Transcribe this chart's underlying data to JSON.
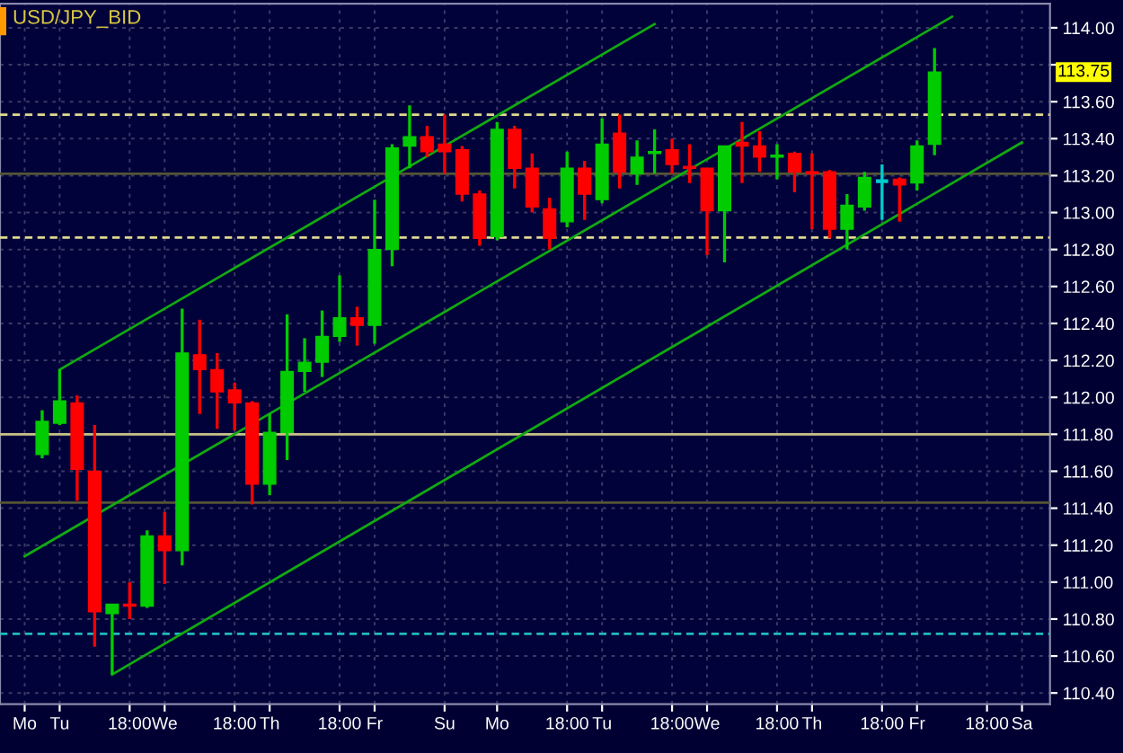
{
  "chart_data": {
    "type": "candlestick",
    "title": "USD/JPY_BID",
    "categories": [
      "Mo",
      null,
      "Tu",
      null,
      null,
      null,
      "18:00",
      null,
      "We",
      null,
      null,
      null,
      "18:00",
      null,
      "Th",
      null,
      null,
      null,
      "18:00",
      null,
      "Fr",
      null,
      null,
      null,
      "Su",
      null,
      null,
      "Mo",
      null,
      null,
      null,
      "18:00",
      null,
      "Tu",
      null,
      null,
      null,
      "18:00",
      null,
      "We",
      null,
      null,
      null,
      "18:00",
      null,
      "Th",
      null,
      null,
      null,
      "18:00",
      null,
      "Fr",
      null,
      null,
      null,
      "18:00",
      null,
      "Sa"
    ],
    "ohlc": [
      null,
      [
        111.69,
        111.93,
        111.67,
        111.87
      ],
      [
        111.86,
        112.15,
        111.85,
        111.98
      ],
      [
        111.97,
        112.01,
        111.44,
        111.61
      ],
      [
        111.6,
        111.85,
        110.65,
        110.84
      ],
      [
        110.83,
        110.88,
        110.5,
        110.88
      ],
      [
        110.88,
        111.0,
        110.8,
        110.87
      ],
      [
        110.87,
        111.28,
        110.86,
        111.25
      ],
      [
        111.25,
        111.38,
        110.99,
        111.17
      ],
      [
        111.17,
        112.48,
        111.09,
        112.24
      ],
      [
        112.23,
        112.42,
        111.91,
        112.15
      ],
      [
        112.15,
        112.24,
        111.83,
        112.03
      ],
      [
        112.04,
        112.08,
        111.82,
        111.97
      ],
      [
        111.97,
        111.98,
        111.42,
        111.53
      ],
      [
        111.53,
        111.91,
        111.47,
        111.81
      ],
      [
        111.81,
        112.45,
        111.66,
        112.14
      ],
      [
        112.14,
        112.32,
        112.03,
        112.19
      ],
      [
        112.19,
        112.47,
        112.11,
        112.33
      ],
      [
        112.33,
        112.66,
        112.3,
        112.43
      ],
      [
        112.43,
        112.49,
        112.28,
        112.39
      ],
      [
        112.39,
        113.07,
        112.29,
        112.8
      ],
      [
        112.8,
        113.37,
        112.71,
        113.35
      ],
      [
        113.36,
        113.58,
        113.24,
        113.41
      ],
      [
        113.41,
        113.47,
        113.3,
        113.33
      ],
      [
        113.37,
        113.53,
        113.21,
        113.33
      ],
      [
        113.34,
        113.36,
        113.06,
        113.1
      ],
      [
        113.1,
        113.12,
        112.82,
        112.86
      ],
      [
        112.87,
        113.49,
        112.85,
        113.45
      ],
      [
        113.45,
        113.47,
        113.13,
        113.24
      ],
      [
        113.24,
        113.32,
        113.0,
        113.03
      ],
      [
        113.02,
        113.08,
        112.8,
        112.86
      ],
      [
        112.95,
        113.33,
        112.92,
        113.24
      ],
      [
        113.24,
        113.28,
        112.96,
        113.1
      ],
      [
        113.07,
        113.51,
        113.05,
        113.37
      ],
      [
        113.43,
        113.53,
        113.13,
        113.22
      ],
      [
        113.21,
        113.39,
        113.15,
        113.3
      ],
      [
        113.32,
        113.45,
        113.21,
        113.33
      ],
      [
        113.34,
        113.4,
        113.21,
        113.26
      ],
      [
        113.25,
        113.37,
        113.16,
        113.24
      ],
      [
        113.24,
        113.24,
        112.77,
        113.01
      ],
      [
        113.01,
        113.36,
        112.73,
        113.36
      ],
      [
        113.38,
        113.49,
        113.16,
        113.36
      ],
      [
        113.36,
        113.44,
        113.22,
        113.3
      ],
      [
        113.3,
        113.37,
        113.18,
        113.31
      ],
      [
        113.32,
        113.33,
        113.11,
        113.22
      ],
      [
        113.22,
        113.32,
        112.91,
        113.21
      ],
      [
        113.22,
        113.23,
        112.86,
        112.91
      ],
      [
        112.91,
        113.1,
        112.8,
        113.04
      ],
      [
        113.03,
        113.22,
        113.01,
        113.19
      ],
      [
        113.17,
        113.26,
        112.96,
        113.17
      ],
      [
        113.18,
        113.19,
        112.95,
        113.15
      ],
      [
        113.16,
        113.39,
        113.12,
        113.36
      ],
      [
        113.37,
        113.89,
        113.31,
        113.76
      ],
      null,
      null,
      null,
      null,
      null
    ],
    "colors": [
      null,
      "#00cc00",
      "#00cc00",
      "#ff0000",
      "#ff0000",
      "#00cc00",
      "#ff0000",
      "#00cc00",
      "#ff0000",
      "#00cc00",
      "#ff0000",
      "#ff0000",
      "#ff0000",
      "#ff0000",
      "#00cc00",
      "#00cc00",
      "#00cc00",
      "#00cc00",
      "#00cc00",
      "#ff0000",
      "#00cc00",
      "#00cc00",
      "#00cc00",
      "#ff0000",
      "#ff0000",
      "#ff0000",
      "#ff0000",
      "#00cc00",
      "#ff0000",
      "#ff0000",
      "#ff0000",
      "#00cc00",
      "#ff0000",
      "#00cc00",
      "#ff0000",
      "#00cc00",
      "#00cc00",
      "#ff0000",
      "#ff0000",
      "#ff0000",
      "#00cc00",
      "#ff0000",
      "#ff0000",
      "#00cc00",
      "#ff0000",
      "#ff0000",
      "#ff0000",
      "#00cc00",
      "#00cc00",
      "#00cccc",
      "#ff0000",
      "#00cc00",
      "#00cc00",
      null,
      null,
      null,
      null,
      null
    ],
    "series": [
      {
        "type": "line",
        "color": "#11aa11",
        "values": [
          null,
          null,
          112.15,
          null,
          null,
          null,
          null,
          null,
          null,
          null,
          null,
          null,
          null,
          null,
          null,
          null,
          null,
          null,
          null,
          null,
          null,
          null,
          null,
          null,
          null,
          null,
          null,
          null,
          null,
          null,
          null,
          null,
          null,
          null,
          null,
          null,
          114.02,
          null,
          null,
          null,
          null,
          null,
          null,
          null,
          null,
          null,
          null,
          null,
          null,
          null,
          null,
          null,
          null,
          null,
          null,
          null,
          null,
          null
        ]
      },
      {
        "type": "line",
        "color": "#11aa11",
        "values": [
          111.14,
          null,
          null,
          null,
          null,
          null,
          null,
          null,
          null,
          null,
          null,
          null,
          null,
          null,
          null,
          null,
          null,
          null,
          null,
          null,
          null,
          null,
          null,
          null,
          null,
          null,
          null,
          null,
          null,
          null,
          null,
          null,
          null,
          null,
          null,
          null,
          null,
          null,
          null,
          null,
          null,
          null,
          null,
          null,
          null,
          null,
          null,
          null,
          null,
          null,
          null,
          null,
          null,
          114.06,
          null,
          null,
          null,
          null
        ]
      },
      {
        "type": "line",
        "color": "#11aa11",
        "values": [
          null,
          null,
          null,
          null,
          null,
          110.5,
          null,
          null,
          null,
          null,
          null,
          null,
          null,
          null,
          null,
          null,
          null,
          null,
          null,
          null,
          null,
          null,
          null,
          null,
          null,
          null,
          null,
          null,
          null,
          null,
          null,
          null,
          null,
          null,
          null,
          null,
          null,
          null,
          null,
          null,
          null,
          null,
          null,
          null,
          null,
          null,
          null,
          null,
          null,
          null,
          null,
          null,
          null,
          null,
          null,
          null,
          null,
          113.38
        ]
      }
    ],
    "ref_lines": [
      {
        "axis": "y",
        "value": 113.53,
        "color": "#e0d890",
        "line_style": "dashed"
      },
      {
        "axis": "y",
        "value": 112.865,
        "color": "#e0d890",
        "line_style": "dashed"
      },
      {
        "axis": "y",
        "value": 111.8,
        "color": "#c8c088",
        "line_style": "solid"
      },
      {
        "axis": "y",
        "value": 113.21,
        "color": "#555533",
        "line_style": "solid"
      },
      {
        "axis": "y",
        "value": 111.43,
        "color": "#555533",
        "line_style": "solid"
      },
      {
        "axis": "y",
        "value": 110.72,
        "color": "#22bbbb",
        "line_style": "dashed"
      }
    ],
    "annotations": [
      "113.75"
    ],
    "ylim": [
      110.34,
      114.13
    ],
    "yticks": [
      {
        "value": 110.4,
        "label": "110.40"
      },
      {
        "value": 110.6,
        "label": "110.60"
      },
      {
        "value": 110.8,
        "label": "110.80"
      },
      {
        "value": 111.0,
        "label": "111.00"
      },
      {
        "value": 111.2,
        "label": "111.20"
      },
      {
        "value": 111.4,
        "label": "111.40"
      },
      {
        "value": 111.6,
        "label": "111.60"
      },
      {
        "value": 111.8,
        "label": "111.80"
      },
      {
        "value": 112.0,
        "label": "112.00"
      },
      {
        "value": 112.2,
        "label": "112.20"
      },
      {
        "value": 112.4,
        "label": "112.40"
      },
      {
        "value": 112.6,
        "label": "112.60"
      },
      {
        "value": 112.8,
        "label": "112.80"
      },
      {
        "value": 113.0,
        "label": "113.00"
      },
      {
        "value": 113.2,
        "label": "113.20"
      },
      {
        "value": 113.4,
        "label": "113.40"
      },
      {
        "value": 113.6,
        "label": "113.60"
      },
      {
        "value": 113.8,
        "label": null
      },
      {
        "value": 114.0,
        "label": "114.00"
      }
    ],
    "grid": true
  }
}
